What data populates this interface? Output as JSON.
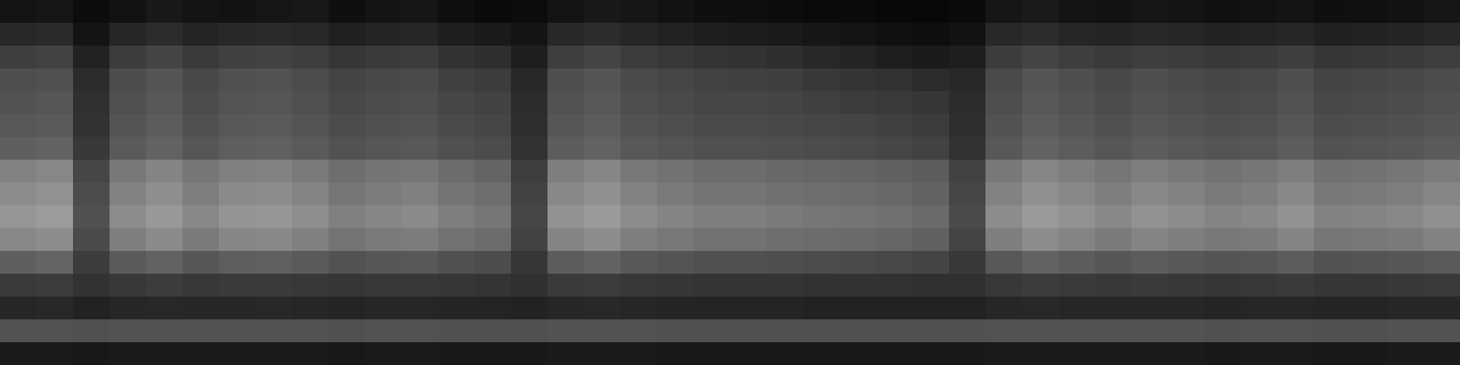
{
  "chart_data": {
    "type": "heatmap",
    "tick_labels": false,
    "xlim": [
      0,
      40
    ],
    "ylim": [
      0,
      16
    ],
    "zlim": [
      0,
      255
    ],
    "cells": [
      [
        20,
        22,
        12,
        18,
        25,
        20,
        18,
        22,
        24,
        15,
        20,
        22,
        14,
        10,
        12,
        20,
        25,
        22,
        18,
        15,
        14,
        12,
        10,
        10,
        8,
        8,
        10,
        22,
        26,
        20,
        18,
        22,
        20,
        16,
        18,
        20,
        15,
        16,
        18,
        22
      ],
      [
        40,
        42,
        20,
        38,
        44,
        36,
        40,
        42,
        40,
        32,
        36,
        38,
        30,
        26,
        20,
        40,
        44,
        38,
        34,
        30,
        28,
        26,
        22,
        20,
        16,
        14,
        18,
        40,
        44,
        38,
        36,
        40,
        38,
        34,
        36,
        38,
        32,
        34,
        36,
        40
      ],
      [
        62,
        66,
        34,
        60,
        68,
        58,
        64,
        66,
        62,
        54,
        58,
        60,
        50,
        46,
        30,
        62,
        68,
        60,
        56,
        52,
        50,
        46,
        40,
        36,
        30,
        26,
        30,
        60,
        68,
        62,
        58,
        62,
        60,
        56,
        58,
        62,
        54,
        56,
        58,
        62
      ],
      [
        78,
        80,
        44,
        76,
        84,
        72,
        80,
        82,
        76,
        68,
        72,
        74,
        64,
        60,
        40,
        78,
        84,
        74,
        70,
        66,
        64,
        62,
        56,
        52,
        50,
        44,
        40,
        74,
        84,
        78,
        72,
        78,
        74,
        70,
        72,
        78,
        68,
        70,
        72,
        76
      ],
      [
        82,
        86,
        48,
        80,
        88,
        76,
        84,
        86,
        80,
        72,
        76,
        78,
        70,
        66,
        44,
        82,
        88,
        78,
        74,
        70,
        70,
        68,
        64,
        60,
        58,
        54,
        44,
        78,
        88,
        82,
        76,
        82,
        78,
        74,
        76,
        82,
        72,
        74,
        76,
        80
      ],
      [
        88,
        90,
        50,
        84,
        92,
        80,
        88,
        90,
        84,
        76,
        80,
        82,
        74,
        70,
        46,
        86,
        92,
        82,
        78,
        74,
        74,
        72,
        70,
        68,
        64,
        60,
        46,
        82,
        92,
        86,
        80,
        86,
        82,
        78,
        80,
        86,
        76,
        78,
        80,
        84
      ],
      [
        95,
        98,
        56,
        90,
        98,
        86,
        94,
        96,
        90,
        82,
        86,
        88,
        80,
        76,
        50,
        92,
        98,
        88,
        84,
        80,
        80,
        78,
        76,
        74,
        70,
        66,
        50,
        88,
        98,
        92,
        86,
        92,
        88,
        84,
        86,
        92,
        82,
        84,
        86,
        90
      ],
      [
        130,
        135,
        70,
        120,
        132,
        118,
        128,
        130,
        122,
        110,
        116,
        118,
        108,
        100,
        62,
        126,
        134,
        120,
        114,
        108,
        108,
        104,
        102,
        100,
        96,
        92,
        66,
        120,
        134,
        126,
        118,
        126,
        120,
        114,
        118,
        126,
        112,
        114,
        118,
        124
      ],
      [
        140,
        145,
        76,
        130,
        142,
        126,
        138,
        140,
        132,
        118,
        124,
        128,
        116,
        110,
        66,
        136,
        144,
        130,
        122,
        116,
        116,
        112,
        110,
        108,
        104,
        98,
        70,
        130,
        144,
        136,
        126,
        136,
        130,
        122,
        126,
        136,
        120,
        122,
        126,
        134
      ],
      [
        150,
        155,
        80,
        140,
        152,
        136,
        148,
        150,
        142,
        128,
        134,
        138,
        126,
        118,
        70,
        146,
        154,
        140,
        132,
        126,
        126,
        122,
        118,
        116,
        112,
        106,
        74,
        140,
        154,
        146,
        136,
        146,
        140,
        132,
        136,
        146,
        130,
        132,
        136,
        144
      ],
      [
        135,
        140,
        74,
        126,
        138,
        122,
        134,
        136,
        128,
        116,
        122,
        124,
        114,
        108,
        66,
        132,
        140,
        126,
        120,
        114,
        114,
        110,
        108,
        106,
        102,
        96,
        68,
        126,
        140,
        132,
        122,
        132,
        126,
        120,
        122,
        132,
        118,
        120,
        122,
        130
      ],
      [
        95,
        100,
        60,
        90,
        98,
        86,
        94,
        96,
        90,
        82,
        86,
        88,
        80,
        76,
        54,
        92,
        98,
        88,
        84,
        80,
        80,
        78,
        76,
        74,
        72,
        68,
        56,
        88,
        98,
        92,
        86,
        92,
        88,
        84,
        86,
        92,
        82,
        84,
        86,
        90
      ],
      [
        58,
        60,
        50,
        56,
        60,
        56,
        58,
        58,
        56,
        54,
        56,
        56,
        54,
        52,
        48,
        58,
        60,
        56,
        54,
        52,
        52,
        52,
        50,
        50,
        50,
        48,
        48,
        56,
        60,
        58,
        56,
        58,
        56,
        54,
        56,
        58,
        54,
        54,
        56,
        58
      ],
      [
        38,
        40,
        34,
        38,
        40,
        38,
        38,
        40,
        38,
        36,
        38,
        38,
        36,
        36,
        34,
        38,
        40,
        38,
        36,
        36,
        36,
        36,
        34,
        34,
        34,
        34,
        34,
        38,
        40,
        38,
        38,
        38,
        38,
        36,
        38,
        38,
        36,
        36,
        38,
        38
      ],
      [
        82,
        82,
        80,
        82,
        82,
        82,
        82,
        82,
        82,
        80,
        82,
        82,
        80,
        80,
        80,
        82,
        82,
        82,
        80,
        80,
        80,
        80,
        80,
        80,
        80,
        80,
        80,
        82,
        82,
        82,
        82,
        82,
        82,
        80,
        82,
        82,
        80,
        80,
        82,
        82
      ],
      [
        26,
        26,
        24,
        26,
        26,
        26,
        26,
        26,
        26,
        24,
        26,
        26,
        24,
        24,
        24,
        26,
        26,
        26,
        24,
        24,
        24,
        24,
        24,
        24,
        24,
        24,
        24,
        26,
        26,
        26,
        26,
        26,
        26,
        24,
        26,
        26,
        24,
        24,
        26,
        26
      ]
    ]
  }
}
